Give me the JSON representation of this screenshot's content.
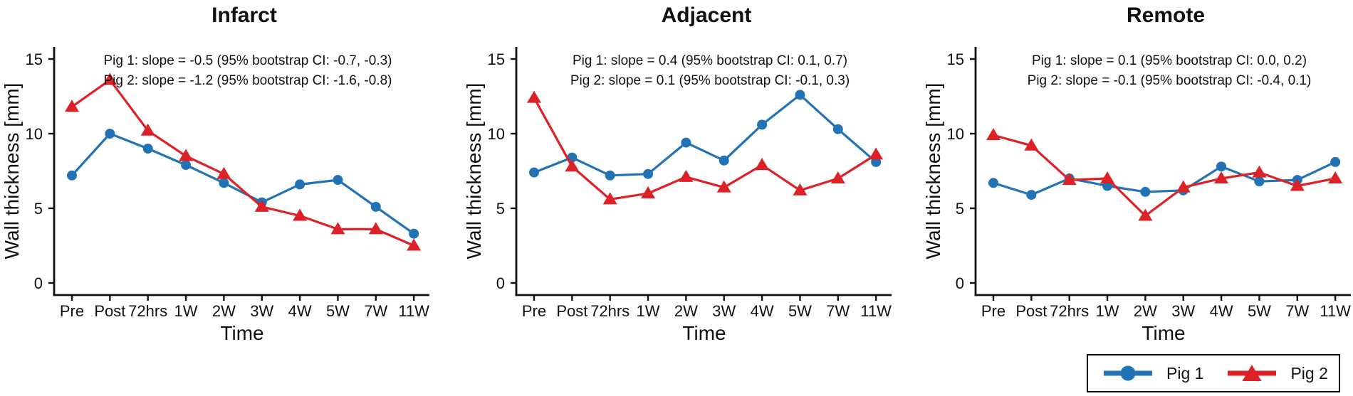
{
  "figure": {
    "kind": "three-panel line chart figure",
    "background": "#ffffff"
  },
  "colors": {
    "pig1_blue": "#2273b5",
    "pig2_red": "#dc2127",
    "axis": "#111111"
  },
  "legend": {
    "items": [
      {
        "label": "Pig 1",
        "marker": "circle",
        "color_key": "pig1_blue"
      },
      {
        "label": "Pig 2",
        "marker": "triangle",
        "color_key": "pig2_red"
      }
    ]
  },
  "chart_data": [
    {
      "type": "line",
      "title": "Infarct",
      "xlabel": "Time",
      "ylabel": "Wall thickness [mm]",
      "ylim": [
        0,
        16
      ],
      "yticks": [
        0,
        5,
        10,
        15
      ],
      "categories": [
        "Pre",
        "Post",
        "72hrs",
        "1W",
        "2W",
        "3W",
        "4W",
        "5W",
        "7W",
        "11W"
      ],
      "annotation_lines": [
        "Pig 1: slope = -0.5 (95% bootstrap CI: -0.7, -0.3)",
        "Pig 2: slope = -1.2 (95% bootstrap CI: -1.6, -0.8)"
      ],
      "series": [
        {
          "name": "Pig 1",
          "marker": "circle",
          "color_key": "pig1_blue",
          "values": [
            7.2,
            10.0,
            9.0,
            7.9,
            6.7,
            5.4,
            6.6,
            6.9,
            5.1,
            3.3
          ]
        },
        {
          "name": "Pig 2",
          "marker": "triangle",
          "color_key": "pig2_red",
          "values": [
            11.8,
            13.6,
            10.2,
            8.5,
            7.3,
            5.1,
            4.5,
            3.6,
            3.6,
            2.5
          ]
        }
      ]
    },
    {
      "type": "line",
      "title": "Adjacent",
      "xlabel": "Time",
      "ylabel": "Wall thickness [mm]",
      "ylim": [
        0,
        16
      ],
      "yticks": [
        0,
        5,
        10,
        15
      ],
      "categories": [
        "Pre",
        "Post",
        "72hrs",
        "1W",
        "2W",
        "3W",
        "4W",
        "5W",
        "7W",
        "11W"
      ],
      "annotation_lines": [
        "Pig 1: slope = 0.4 (95% bootstrap CI: 0.1, 0.7)",
        "Pig 2: slope = 0.1 (95% bootstrap CI: -0.1, 0.3)"
      ],
      "series": [
        {
          "name": "Pig 1",
          "marker": "circle",
          "color_key": "pig1_blue",
          "values": [
            7.4,
            8.4,
            7.2,
            7.3,
            9.4,
            8.2,
            10.6,
            12.6,
            10.3,
            8.1
          ]
        },
        {
          "name": "Pig 2",
          "marker": "triangle",
          "color_key": "pig2_red",
          "values": [
            12.4,
            7.8,
            5.6,
            6.0,
            7.1,
            6.4,
            7.9,
            6.2,
            7.0,
            8.6
          ]
        }
      ]
    },
    {
      "type": "line",
      "title": "Remote",
      "xlabel": "Time",
      "ylabel": "Wall thickness [mm]",
      "ylim": [
        0,
        16
      ],
      "yticks": [
        0,
        5,
        10,
        15
      ],
      "categories": [
        "Pre",
        "Post",
        "72hrs",
        "1W",
        "2W",
        "3W",
        "4W",
        "5W",
        "7W",
        "11W"
      ],
      "annotation_lines": [
        "Pig 1: slope = 0.1 (95% bootstrap CI: 0.0, 0.2)",
        "Pig 2: slope = -0.1 (95% bootstrap CI: -0.4, 0.1)"
      ],
      "series": [
        {
          "name": "Pig 1",
          "marker": "circle",
          "color_key": "pig1_blue",
          "values": [
            6.7,
            5.9,
            7.0,
            6.5,
            6.1,
            6.2,
            7.8,
            6.8,
            6.9,
            8.1
          ]
        },
        {
          "name": "Pig 2",
          "marker": "triangle",
          "color_key": "pig2_red",
          "values": [
            9.9,
            9.2,
            6.9,
            7.0,
            4.5,
            6.4,
            7.0,
            7.4,
            6.5,
            7.0
          ]
        }
      ]
    }
  ]
}
